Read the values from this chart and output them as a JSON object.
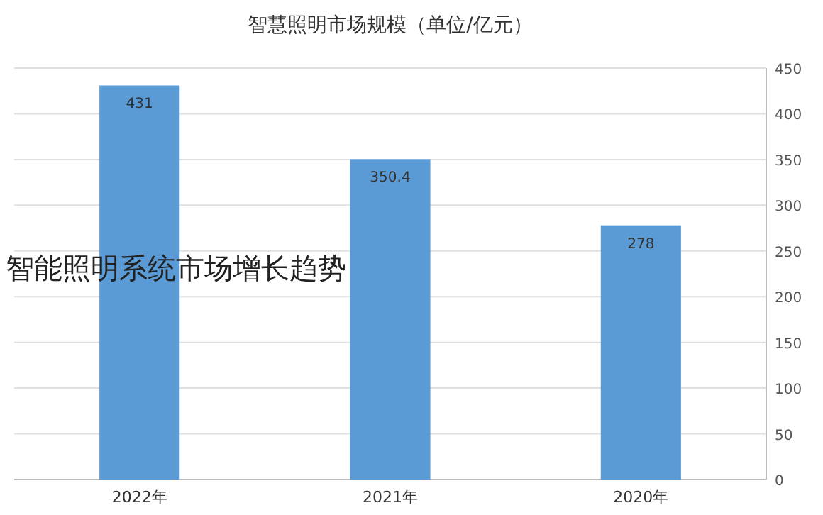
{
  "chart_data": {
    "type": "bar",
    "title": "智慧照明市场规模（单位/亿元）",
    "categories": [
      "2022年",
      "2021年",
      "2020年"
    ],
    "values": [
      431,
      350.4,
      278
    ],
    "color": "#5b9bd5",
    "ylim": [
      0,
      450
    ],
    "yticks": [
      0,
      50,
      100,
      150,
      200,
      250,
      300,
      350,
      400,
      450
    ],
    "grid": "y",
    "data_labels": true,
    "annotations": [
      "智能照明系统市场增长趋势"
    ]
  }
}
